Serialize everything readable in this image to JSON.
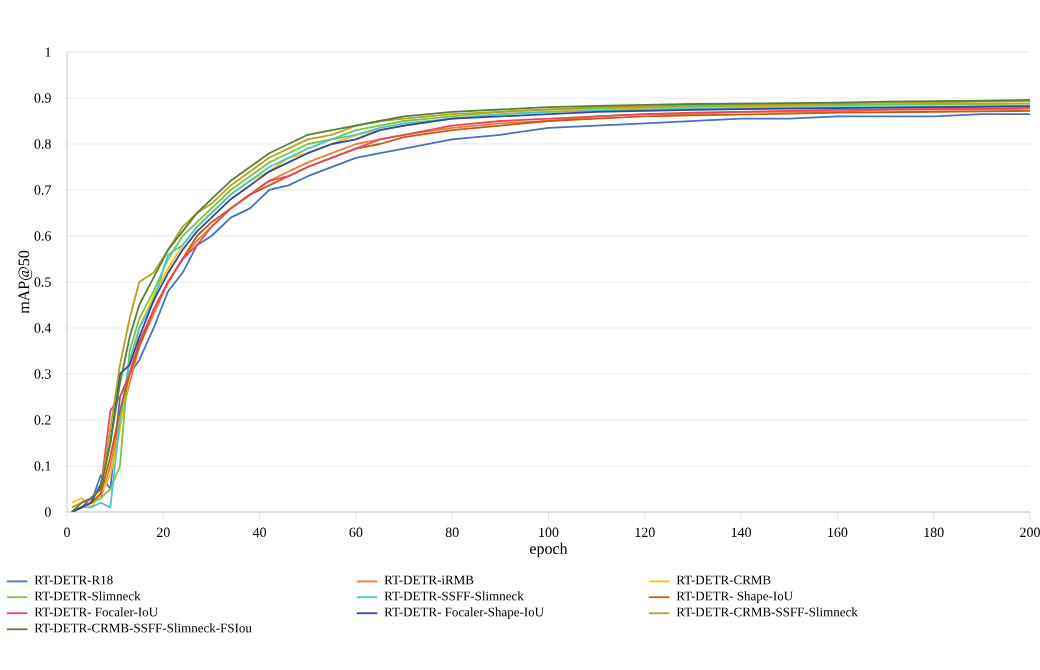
{
  "chart_data": {
    "type": "line",
    "xlabel": "epoch",
    "ylabel": "mAP@50",
    "x": [
      1,
      3,
      5,
      7,
      9,
      11,
      13,
      15,
      18,
      21,
      24,
      27,
      30,
      34,
      38,
      42,
      46,
      50,
      55,
      60,
      65,
      70,
      80,
      90,
      100,
      110,
      120,
      130,
      140,
      150,
      160,
      170,
      180,
      190,
      200
    ],
    "series": [
      {
        "name": "RT-DETR-R18",
        "color": "#4472c4",
        "values": [
          0,
          0.01,
          0.02,
          0.08,
          0.05,
          0.25,
          0.3,
          0.33,
          0.4,
          0.48,
          0.52,
          0.58,
          0.6,
          0.64,
          0.66,
          0.7,
          0.71,
          0.73,
          0.75,
          0.77,
          0.78,
          0.79,
          0.81,
          0.82,
          0.835,
          0.84,
          0.845,
          0.85,
          0.855,
          0.855,
          0.86,
          0.86,
          0.86,
          0.865,
          0.865
        ]
      },
      {
        "name": "RT-DETR-iRMB",
        "color": "#ed7d31",
        "values": [
          0,
          0.01,
          0.02,
          0.03,
          0.1,
          0.2,
          0.28,
          0.36,
          0.43,
          0.5,
          0.55,
          0.59,
          0.62,
          0.66,
          0.69,
          0.72,
          0.74,
          0.76,
          0.78,
          0.8,
          0.81,
          0.82,
          0.835,
          0.845,
          0.85,
          0.86,
          0.865,
          0.865,
          0.87,
          0.87,
          0.87,
          0.875,
          0.875,
          0.875,
          0.877
        ]
      },
      {
        "name": "RT-DETR-CRMB",
        "color": "#ffc000",
        "values": [
          0.02,
          0.03,
          0.01,
          0.04,
          0.08,
          0.18,
          0.3,
          0.4,
          0.47,
          0.53,
          0.58,
          0.62,
          0.65,
          0.69,
          0.72,
          0.74,
          0.77,
          0.78,
          0.8,
          0.82,
          0.83,
          0.84,
          0.855,
          0.865,
          0.87,
          0.875,
          0.878,
          0.88,
          0.882,
          0.883,
          0.884,
          0.885,
          0.885,
          0.888,
          0.888
        ]
      },
      {
        "name": "RT-DETR-Slimneck",
        "color": "#7cc243",
        "values": [
          0,
          0.01,
          0.02,
          0.03,
          0.05,
          0.1,
          0.35,
          0.42,
          0.48,
          0.55,
          0.6,
          0.63,
          0.66,
          0.7,
          0.73,
          0.76,
          0.78,
          0.8,
          0.81,
          0.83,
          0.84,
          0.85,
          0.86,
          0.87,
          0.875,
          0.878,
          0.88,
          0.882,
          0.883,
          0.884,
          0.885,
          0.886,
          0.887,
          0.887,
          0.888
        ]
      },
      {
        "name": "RT-DETR-SSFF-Slimneck",
        "color": "#4bc6c6",
        "values": [
          0,
          0.01,
          0.01,
          0.02,
          0.01,
          0.2,
          0.33,
          0.4,
          0.46,
          0.56,
          0.58,
          0.62,
          0.65,
          0.69,
          0.72,
          0.75,
          0.77,
          0.79,
          0.81,
          0.82,
          0.835,
          0.845,
          0.855,
          0.865,
          0.87,
          0.872,
          0.875,
          0.877,
          0.878,
          0.879,
          0.88,
          0.88,
          0.881,
          0.882,
          0.883
        ]
      },
      {
        "name": "RT-DETR- Shape-IoU",
        "color": "#c55a11",
        "values": [
          0,
          0.01,
          0.02,
          0.04,
          0.12,
          0.22,
          0.3,
          0.36,
          0.44,
          0.5,
          0.55,
          0.6,
          0.63,
          0.66,
          0.69,
          0.71,
          0.73,
          0.75,
          0.77,
          0.79,
          0.8,
          0.815,
          0.83,
          0.84,
          0.85,
          0.855,
          0.86,
          0.862,
          0.864,
          0.866,
          0.868,
          0.869,
          0.87,
          0.871,
          0.872
        ]
      },
      {
        "name": "RT-DETR- Focaler-IoU",
        "color": "#e8475f",
        "values": [
          0,
          0.01,
          0.03,
          0.05,
          0.22,
          0.25,
          0.3,
          0.37,
          0.44,
          0.5,
          0.55,
          0.58,
          0.62,
          0.66,
          0.69,
          0.72,
          0.73,
          0.75,
          0.77,
          0.79,
          0.81,
          0.82,
          0.84,
          0.85,
          0.855,
          0.86,
          0.865,
          0.868,
          0.87,
          0.872,
          0.874,
          0.875,
          0.876,
          0.877,
          0.878
        ]
      },
      {
        "name": "RT-DETR- Focaler-Shape-IoU",
        "color": "#2e4a9e",
        "values": [
          0,
          0.01,
          0.02,
          0.06,
          0.15,
          0.3,
          0.32,
          0.38,
          0.46,
          0.52,
          0.57,
          0.61,
          0.64,
          0.68,
          0.71,
          0.74,
          0.76,
          0.78,
          0.8,
          0.81,
          0.83,
          0.84,
          0.855,
          0.86,
          0.865,
          0.87,
          0.872,
          0.874,
          0.876,
          0.877,
          0.878,
          0.879,
          0.88,
          0.881,
          0.882
        ]
      },
      {
        "name": "RT-DETR-CRMB-SSFF-Slimneck",
        "color": "#b8a020",
        "values": [
          0.01,
          0.02,
          0.03,
          0.05,
          0.18,
          0.32,
          0.42,
          0.5,
          0.52,
          0.57,
          0.62,
          0.65,
          0.67,
          0.71,
          0.74,
          0.77,
          0.79,
          0.81,
          0.82,
          0.84,
          0.85,
          0.855,
          0.865,
          0.87,
          0.875,
          0.88,
          0.882,
          0.884,
          0.886,
          0.887,
          0.888,
          0.89,
          0.89,
          0.892,
          0.893
        ]
      },
      {
        "name": "RT-DETR-CRMB-SSFF-Slimneck-FSIou",
        "color": "#548235",
        "values": [
          0,
          0.02,
          0.03,
          0.05,
          0.15,
          0.28,
          0.38,
          0.45,
          0.51,
          0.57,
          0.61,
          0.65,
          0.68,
          0.72,
          0.75,
          0.78,
          0.8,
          0.82,
          0.83,
          0.84,
          0.85,
          0.86,
          0.87,
          0.875,
          0.88,
          0.883,
          0.885,
          0.887,
          0.888,
          0.889,
          0.89,
          0.892,
          0.893,
          0.894,
          0.896
        ]
      }
    ],
    "xlim": [
      0,
      200
    ],
    "ylim": [
      0,
      1
    ],
    "xticks": [
      0,
      20,
      40,
      60,
      80,
      100,
      120,
      140,
      160,
      180,
      200
    ],
    "yticks": [
      0,
      0.1,
      0.2,
      0.3,
      0.4,
      0.5,
      0.6,
      0.7,
      0.8,
      0.9,
      1
    ],
    "grid": "y",
    "legend": "bottom",
    "marker": "none",
    "line_style": "solid"
  }
}
